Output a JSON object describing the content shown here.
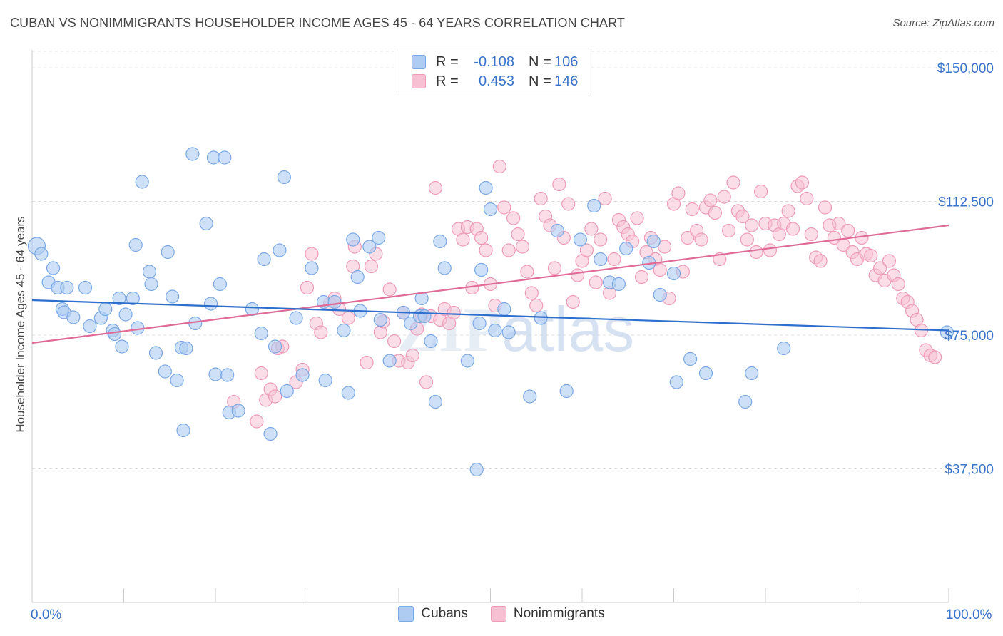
{
  "title": "CUBAN VS NONIMMIGRANTS HOUSEHOLDER INCOME AGES 45 - 64 YEARS CORRELATION CHART",
  "source": "Source: ZipAtlas.com",
  "watermark": "ZIPatlas",
  "legend_top": [
    {
      "label": "R =",
      "r": "-0.108",
      "n_label": "N =",
      "n": "106"
    },
    {
      "label": "R =",
      "r": "0.453",
      "n_label": "N =",
      "n": "146"
    }
  ],
  "legend_bottom": [
    "Cubans",
    "Nonimmigrants"
  ],
  "colors": {
    "cubans_fill": "#aecbf2",
    "cubans_stroke": "#7aa8e6",
    "cubans_line": "#2d6fcd",
    "nonimm_fill": "#f8c1d3",
    "nonimm_stroke": "#ee9ab8",
    "nonimm_line": "#e06b96",
    "tick_label": "#3a74c9"
  },
  "chart_data": {
    "type": "scatter",
    "title": "CUBAN VS NONIMMIGRANTS HOUSEHOLDER INCOME AGES 45 - 64 YEARS CORRELATION CHART",
    "xlabel": "",
    "ylabel": "Householder Income Ages 45 - 64 years",
    "xlim": [
      0,
      100
    ],
    "ylim": [
      0,
      155000
    ],
    "x_tick_labels": [
      "0.0%",
      "100.0%"
    ],
    "y_ticks": [
      37500,
      75000,
      112500,
      150000
    ],
    "y_tick_labels": [
      "$37,500",
      "$75,000",
      "$112,500",
      "$150,000"
    ],
    "grid": "horizontal dashed",
    "series": [
      {
        "name": "Cubans",
        "trend": [
          [
            0,
            84800
          ],
          [
            100,
            76300
          ]
        ],
        "points": [
          [
            0.5,
            100000
          ],
          [
            1.0,
            97800
          ],
          [
            2.3,
            93800
          ],
          [
            1.8,
            89800
          ],
          [
            2.8,
            88300
          ],
          [
            3.8,
            88300
          ],
          [
            5.8,
            88300
          ],
          [
            3.3,
            82300
          ],
          [
            3.5,
            81400
          ],
          [
            4.5,
            80000
          ],
          [
            6.3,
            77500
          ],
          [
            7.5,
            79800
          ],
          [
            8.0,
            82300
          ],
          [
            8.8,
            76300
          ],
          [
            9.0,
            75300
          ],
          [
            9.5,
            85300
          ],
          [
            9.8,
            71800
          ],
          [
            10.2,
            80800
          ],
          [
            11.0,
            85300
          ],
          [
            11.3,
            100300
          ],
          [
            11.5,
            77000
          ],
          [
            12.0,
            118000
          ],
          [
            12.8,
            92800
          ],
          [
            13.0,
            89300
          ],
          [
            13.5,
            70000
          ],
          [
            14.5,
            64800
          ],
          [
            14.8,
            98300
          ],
          [
            15.3,
            85800
          ],
          [
            15.8,
            62300
          ],
          [
            16.3,
            71500
          ],
          [
            16.8,
            71300
          ],
          [
            16.5,
            48300
          ],
          [
            17.5,
            125800
          ],
          [
            17.8,
            78300
          ],
          [
            19.0,
            106300
          ],
          [
            19.5,
            83800
          ],
          [
            20.0,
            64000
          ],
          [
            19.8,
            124800
          ],
          [
            20.5,
            89300
          ],
          [
            21.0,
            124800
          ],
          [
            21.3,
            63800
          ],
          [
            21.5,
            53300
          ],
          [
            22.5,
            53800
          ],
          [
            24.0,
            82300
          ],
          [
            25.0,
            75500
          ],
          [
            25.3,
            96300
          ],
          [
            26.0,
            47300
          ],
          [
            26.5,
            71800
          ],
          [
            27.0,
            98800
          ],
          [
            27.5,
            119300
          ],
          [
            27.8,
            59300
          ],
          [
            28.8,
            79800
          ],
          [
            29.5,
            63800
          ],
          [
            30.5,
            93800
          ],
          [
            31.8,
            84300
          ],
          [
            32.0,
            62300
          ],
          [
            33.0,
            84300
          ],
          [
            34.0,
            76300
          ],
          [
            34.5,
            58800
          ],
          [
            35.0,
            101800
          ],
          [
            35.5,
            91300
          ],
          [
            35.8,
            81800
          ],
          [
            36.8,
            99800
          ],
          [
            37.8,
            102300
          ],
          [
            38.0,
            79300
          ],
          [
            39.0,
            67800
          ],
          [
            40.5,
            81300
          ],
          [
            41.3,
            78300
          ],
          [
            42.3,
            80300
          ],
          [
            42.5,
            85300
          ],
          [
            42.8,
            80300
          ],
          [
            43.5,
            73300
          ],
          [
            44.0,
            56300
          ],
          [
            44.5,
            101300
          ],
          [
            45.0,
            93800
          ],
          [
            47.5,
            67800
          ],
          [
            48.5,
            37300
          ],
          [
            48.8,
            78300
          ],
          [
            49.0,
            93300
          ],
          [
            49.5,
            116300
          ],
          [
            50.0,
            110300
          ],
          [
            50.5,
            76300
          ],
          [
            51.5,
            82300
          ],
          [
            52.0,
            75800
          ],
          [
            54.3,
            57800
          ],
          [
            55.5,
            79800
          ],
          [
            57.3,
            104300
          ],
          [
            58.3,
            59300
          ],
          [
            59.8,
            101800
          ],
          [
            61.3,
            111300
          ],
          [
            62.0,
            96300
          ],
          [
            63.0,
            89800
          ],
          [
            64.0,
            89300
          ],
          [
            64.8,
            99300
          ],
          [
            67.3,
            95300
          ],
          [
            67.8,
            101300
          ],
          [
            68.5,
            86300
          ],
          [
            70.0,
            92300
          ],
          [
            70.3,
            61800
          ],
          [
            71.8,
            68300
          ],
          [
            73.5,
            64300
          ],
          [
            77.8,
            56300
          ],
          [
            78.5,
            64300
          ],
          [
            82.0,
            71300
          ],
          [
            99.8,
            75800
          ]
        ]
      },
      {
        "name": "Nonimmigrants",
        "trend": [
          [
            0,
            72800
          ],
          [
            100,
            105800
          ]
        ],
        "points": [
          [
            22.0,
            56300
          ],
          [
            24.5,
            50800
          ],
          [
            25.0,
            64300
          ],
          [
            25.5,
            56800
          ],
          [
            26.0,
            59800
          ],
          [
            26.5,
            57800
          ],
          [
            26.8,
            71300
          ],
          [
            27.3,
            71800
          ],
          [
            28.8,
            61800
          ],
          [
            29.5,
            65300
          ],
          [
            30.0,
            88300
          ],
          [
            30.5,
            97800
          ],
          [
            31.0,
            78300
          ],
          [
            31.5,
            75800
          ],
          [
            32.5,
            83800
          ],
          [
            33.0,
            85300
          ],
          [
            33.5,
            82300
          ],
          [
            34.5,
            79800
          ],
          [
            35.0,
            94300
          ],
          [
            35.2,
            99800
          ],
          [
            36.5,
            67300
          ],
          [
            37.0,
            94300
          ],
          [
            37.5,
            97800
          ],
          [
            38.0,
            75800
          ],
          [
            38.3,
            78800
          ],
          [
            39.0,
            87800
          ],
          [
            39.5,
            73300
          ],
          [
            40.0,
            67800
          ],
          [
            40.5,
            81300
          ],
          [
            41.0,
            67300
          ],
          [
            41.5,
            69300
          ],
          [
            42.0,
            76800
          ],
          [
            42.5,
            80800
          ],
          [
            43.0,
            61800
          ],
          [
            43.5,
            80300
          ],
          [
            44.0,
            116300
          ],
          [
            44.5,
            79300
          ],
          [
            45.0,
            82300
          ],
          [
            45.5,
            78300
          ],
          [
            46.0,
            81300
          ],
          [
            46.5,
            104800
          ],
          [
            47.0,
            101800
          ],
          [
            47.5,
            105300
          ],
          [
            48.0,
            88300
          ],
          [
            48.5,
            104800
          ],
          [
            49.0,
            102300
          ],
          [
            49.5,
            98800
          ],
          [
            50.0,
            89300
          ],
          [
            50.5,
            83300
          ],
          [
            51.0,
            122300
          ],
          [
            51.5,
            110800
          ],
          [
            52.0,
            98800
          ],
          [
            52.5,
            107800
          ],
          [
            53.0,
            103300
          ],
          [
            53.5,
            99800
          ],
          [
            54.0,
            92800
          ],
          [
            54.5,
            86800
          ],
          [
            55.0,
            83300
          ],
          [
            55.5,
            113300
          ],
          [
            56.0,
            108300
          ],
          [
            56.5,
            105800
          ],
          [
            57.0,
            93800
          ],
          [
            57.5,
            117300
          ],
          [
            58.0,
            102300
          ],
          [
            58.5,
            111800
          ],
          [
            59.0,
            84300
          ],
          [
            59.5,
            91800
          ],
          [
            60.0,
            95800
          ],
          [
            60.5,
            98800
          ],
          [
            61.0,
            104800
          ],
          [
            61.5,
            89800
          ],
          [
            62.0,
            101800
          ],
          [
            62.5,
            113300
          ],
          [
            63.0,
            86800
          ],
          [
            63.5,
            96300
          ],
          [
            64.0,
            107300
          ],
          [
            64.5,
            105300
          ],
          [
            65.0,
            103300
          ],
          [
            65.5,
            101300
          ],
          [
            66.0,
            107800
          ],
          [
            66.5,
            91300
          ],
          [
            67.0,
            98300
          ],
          [
            67.5,
            102300
          ],
          [
            68.0,
            96300
          ],
          [
            68.5,
            93300
          ],
          [
            69.0,
            99800
          ],
          [
            69.5,
            85300
          ],
          [
            70.0,
            111800
          ],
          [
            70.5,
            114800
          ],
          [
            71.0,
            92800
          ],
          [
            71.5,
            102300
          ],
          [
            72.0,
            110300
          ],
          [
            72.5,
            104300
          ],
          [
            73.0,
            101800
          ],
          [
            73.5,
            110800
          ],
          [
            74.0,
            112800
          ],
          [
            74.5,
            109300
          ],
          [
            75.0,
            96300
          ],
          [
            75.5,
            113800
          ],
          [
            76.0,
            104300
          ],
          [
            76.5,
            117800
          ],
          [
            77.0,
            109800
          ],
          [
            77.5,
            108300
          ],
          [
            78.0,
            101800
          ],
          [
            78.5,
            105800
          ],
          [
            79.0,
            98300
          ],
          [
            79.5,
            115300
          ],
          [
            80.0,
            106300
          ],
          [
            80.5,
            98800
          ],
          [
            81.0,
            105800
          ],
          [
            81.5,
            103300
          ],
          [
            82.0,
            106300
          ],
          [
            82.5,
            109800
          ],
          [
            83.0,
            104800
          ],
          [
            83.5,
            116800
          ],
          [
            84.0,
            117800
          ],
          [
            84.5,
            113300
          ],
          [
            85.0,
            103300
          ],
          [
            85.5,
            96800
          ],
          [
            86.0,
            95800
          ],
          [
            86.5,
            110800
          ],
          [
            87.0,
            105800
          ],
          [
            87.5,
            102300
          ],
          [
            88.0,
            106300
          ],
          [
            88.5,
            100300
          ],
          [
            89.0,
            104300
          ],
          [
            89.5,
            98300
          ],
          [
            90.0,
            96300
          ],
          [
            90.5,
            102300
          ],
          [
            91.0,
            97800
          ],
          [
            91.5,
            97300
          ],
          [
            92.0,
            91800
          ],
          [
            92.5,
            93800
          ],
          [
            93.0,
            90300
          ],
          [
            93.5,
            95800
          ],
          [
            94.0,
            91800
          ],
          [
            94.5,
            89300
          ],
          [
            95.0,
            85300
          ],
          [
            95.5,
            84300
          ],
          [
            96.0,
            81800
          ],
          [
            96.5,
            79300
          ],
          [
            97.0,
            76300
          ],
          [
            97.5,
            70800
          ],
          [
            98.0,
            69300
          ],
          [
            98.5,
            68800
          ]
        ]
      }
    ]
  }
}
